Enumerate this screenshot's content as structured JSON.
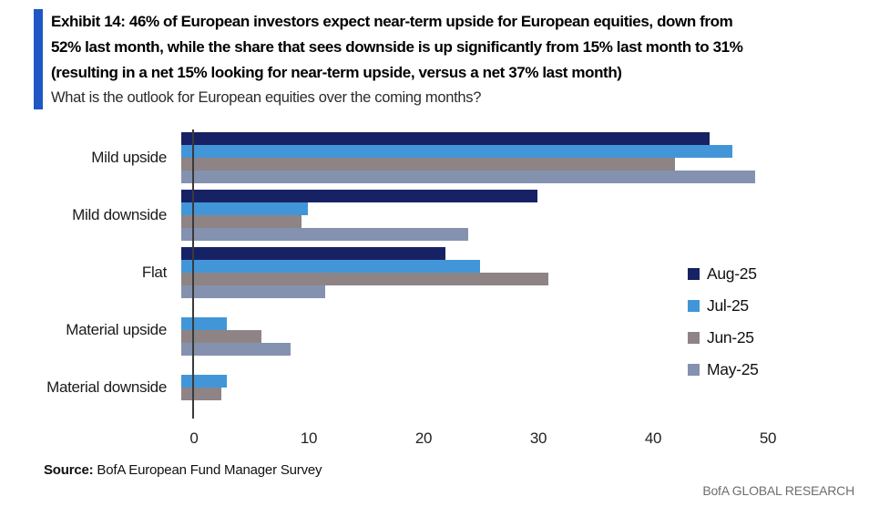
{
  "header": {
    "accent_color": "#2057c4",
    "title_lines": [
      "Exhibit 14: 46% of European investors expect near-term upside for European equities, down from",
      "52% last month, while the share that sees downside is up significantly from 15% last month to 31%",
      "(resulting in a net 15% looking for near-term upside, versus a net 37% last month)"
    ],
    "subtitle": "What is the outlook for European equities over the coming months?"
  },
  "chart_data": {
    "type": "bar",
    "orientation": "horizontal",
    "title": "What is the outlook for European equities over the coming months?",
    "categories": [
      "Mild upside",
      "Mild downside",
      "Flat",
      "Material upside",
      "Material downside"
    ],
    "series": [
      {
        "name": "Aug-25",
        "color": "#172264",
        "values": [
          46,
          31,
          23,
          0,
          0
        ]
      },
      {
        "name": "Jul-25",
        "color": "#4296d8",
        "values": [
          48,
          11,
          26,
          4,
          4
        ]
      },
      {
        "name": "Jun-25",
        "color": "#8e8485",
        "values": [
          43,
          10.5,
          32,
          7,
          3.5
        ]
      },
      {
        "name": "May-25",
        "color": "#8492b0",
        "values": [
          50,
          25,
          12.5,
          9.5,
          0
        ]
      }
    ],
    "x_ticks": [
      0,
      10,
      20,
      30,
      40,
      50
    ],
    "xlim": [
      0,
      50
    ],
    "xlabel": "",
    "ylabel": "",
    "grid": false,
    "legend_position": "right",
    "axis_color": "#3a3a3a"
  },
  "footer": {
    "source_label": "Source:",
    "source_text": " BofA European Fund Manager Survey",
    "brand": "BofA GLOBAL RESEARCH"
  }
}
